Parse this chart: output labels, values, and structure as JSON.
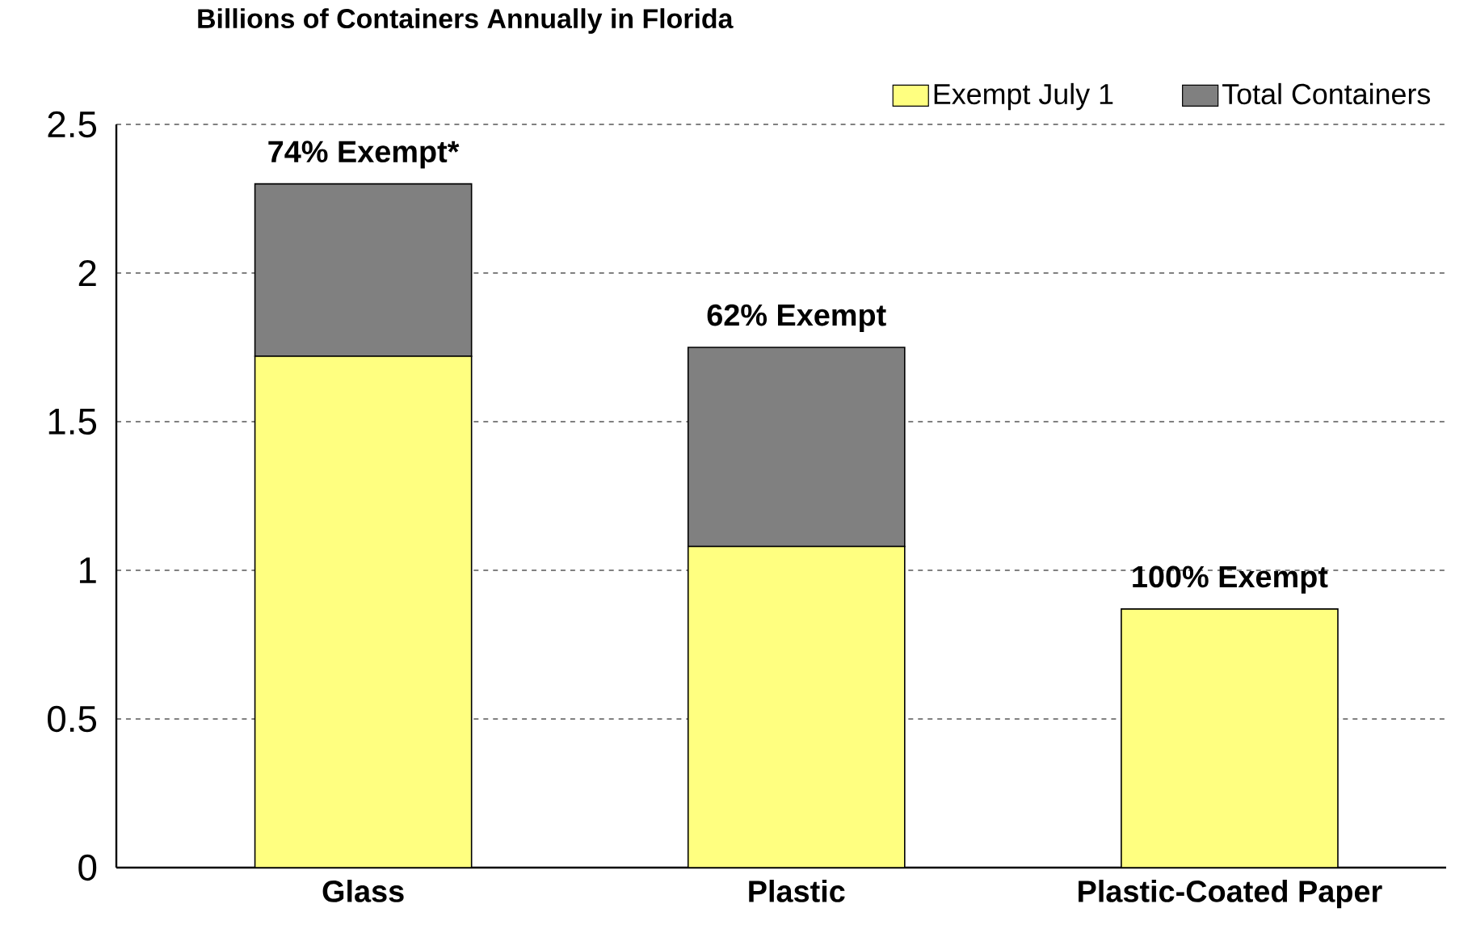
{
  "chart_data": {
    "type": "bar",
    "title": "Billions of Containers Annually in Florida",
    "categories": [
      "Glass",
      "Plastic",
      "Plastic-Coated Paper"
    ],
    "stacked": true,
    "series": [
      {
        "name": "Exempt July 1",
        "color": "#ffff80",
        "values": [
          1.72,
          1.08,
          0.87
        ]
      },
      {
        "name": "Total Containers",
        "color": "#808080",
        "values": [
          0.58,
          0.67,
          0
        ]
      }
    ],
    "ylim": [
      0,
      2.5
    ],
    "yticks": [
      0,
      0.5,
      1,
      1.5,
      2,
      2.5
    ],
    "grid": "y",
    "legend": "top right",
    "annotations": [
      {
        "text": "74% Exempt*",
        "x": "Glass",
        "y": 2.3
      },
      {
        "text": "62% Exempt",
        "x": "Plastic",
        "y": 1.75
      },
      {
        "text": "100% Exempt",
        "x": "Plastic-Coated Paper",
        "y": 0.87
      }
    ]
  }
}
